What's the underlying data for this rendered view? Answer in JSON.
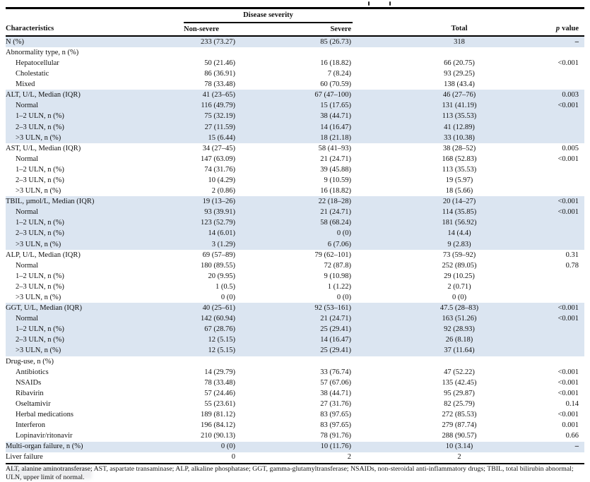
{
  "colors": {
    "row_shade": "#dbe5f1",
    "rule": "#000000",
    "text": "#121212"
  },
  "table": {
    "group_header": "Disease severity",
    "columns": {
      "characteristics": "Characteristics",
      "non_severe": "Non-severe",
      "severe": "Severe",
      "total": "Total",
      "p_italic": "p",
      "p_rest": "value"
    },
    "rows": [
      {
        "label": "N (%)",
        "indent": 0,
        "non_severe": "233 (73.27)",
        "severe": "85 (26.73)",
        "total": "318",
        "p": "–",
        "shaded": true
      },
      {
        "label": "Abnormality type, n (%)",
        "indent": 0,
        "non_severe": "",
        "severe": "",
        "total": "",
        "p": "",
        "shaded": false
      },
      {
        "label": "Hepatocellular",
        "indent": 1,
        "non_severe": "50 (21.46)",
        "severe": "16 (18.82)",
        "total": "66 (20.75)",
        "p": "<0.001",
        "shaded": false
      },
      {
        "label": "Cholestatic",
        "indent": 1,
        "non_severe": "86 (36.91)",
        "severe": "7 (8.24)",
        "total": "93 (29.25)",
        "p": "",
        "shaded": false
      },
      {
        "label": "Mixed",
        "indent": 1,
        "non_severe": "78 (33.48)",
        "severe": "60 (70.59)",
        "total": "138 (43.4)",
        "p": "",
        "shaded": false
      },
      {
        "label": "ALT, U/L, Median (IQR)",
        "indent": 0,
        "non_severe": "41 (23–65)",
        "severe": "67 (47–100)",
        "total": "46 (27–76)",
        "p": "0.003",
        "shaded": true
      },
      {
        "label": "Normal",
        "indent": 1,
        "non_severe": "116 (49.79)",
        "severe": "15 (17.65)",
        "total": "131 (41.19)",
        "p": "<0.001",
        "shaded": true
      },
      {
        "label": "1–2 ULN, n (%)",
        "indent": 1,
        "non_severe": "75 (32.19)",
        "severe": "38 (44.71)",
        "total": "113 (35.53)",
        "p": "",
        "shaded": true
      },
      {
        "label": "2–3 ULN, n (%)",
        "indent": 1,
        "non_severe": "27 (11.59)",
        "severe": "14 (16.47)",
        "total": "41 (12.89)",
        "p": "",
        "shaded": true
      },
      {
        "label": ">3 ULN, n (%)",
        "indent": 1,
        "non_severe": "15 (6.44)",
        "severe": "18 (21.18)",
        "total": "33 (10.38)",
        "p": "",
        "shaded": true
      },
      {
        "label": "AST, U/L, Median (IQR)",
        "indent": 0,
        "non_severe": "34 (27–45)",
        "severe": "58 (41–93)",
        "total": "38 (28–52)",
        "p": "0.005",
        "shaded": false
      },
      {
        "label": "Normal",
        "indent": 1,
        "non_severe": "147 (63.09)",
        "severe": "21 (24.71)",
        "total": "168 (52.83)",
        "p": "<0.001",
        "shaded": false
      },
      {
        "label": "1–2 ULN, n (%)",
        "indent": 1,
        "non_severe": "74 (31.76)",
        "severe": "39 (45.88)",
        "total": "113 (35.53)",
        "p": "",
        "shaded": false
      },
      {
        "label": "2–3 ULN, n (%)",
        "indent": 1,
        "non_severe": "10 (4.29)",
        "severe": "9 (10.59)",
        "total": "19 (5.97)",
        "p": "",
        "shaded": false
      },
      {
        "label": ">3 ULN, n (%)",
        "indent": 1,
        "non_severe": "2 (0.86)",
        "severe": "16 (18.82)",
        "total": "18 (5.66)",
        "p": "",
        "shaded": false
      },
      {
        "label": "TBIL, µmol/L, Median (IQR)",
        "indent": 0,
        "non_severe": "19 (13–26)",
        "severe": "22 (18–28)",
        "total": "20 (14–27)",
        "p": "<0.001",
        "shaded": true
      },
      {
        "label": "Normal",
        "indent": 1,
        "non_severe": "93 (39.91)",
        "severe": "21 (24.71)",
        "total": "114 (35.85)",
        "p": "<0.001",
        "shaded": true
      },
      {
        "label": "1–2 ULN, n (%)",
        "indent": 1,
        "non_severe": "123 (52.79)",
        "severe": "58 (68.24)",
        "total": "181 (56.92)",
        "p": "",
        "shaded": true
      },
      {
        "label": "2–3 ULN, n (%)",
        "indent": 1,
        "non_severe": "14 (6.01)",
        "severe": "0 (0)",
        "total": "14 (4.4)",
        "p": "",
        "shaded": true
      },
      {
        "label": ">3 ULN, n (%)",
        "indent": 1,
        "non_severe": "3 (1.29)",
        "severe": "6 (7.06)",
        "total": "9 (2.83)",
        "p": "",
        "shaded": true
      },
      {
        "label": "ALP, U/L, Median (IQR)",
        "indent": 0,
        "non_severe": "69 (57–89)",
        "severe": "79 (62–101)",
        "total": "73 (59–92)",
        "p": "0.31",
        "shaded": false
      },
      {
        "label": "Normal",
        "indent": 1,
        "non_severe": "180 (89.55)",
        "severe": "72 (87.8)",
        "total": "252 (89.05)",
        "p": "0.78",
        "shaded": false
      },
      {
        "label": "1–2 ULN, n (%)",
        "indent": 1,
        "non_severe": "20 (9.95)",
        "severe": "9 (10.98)",
        "total": "29 (10.25)",
        "p": "",
        "shaded": false
      },
      {
        "label": "2–3 ULN, n (%)",
        "indent": 1,
        "non_severe": "1 (0.5)",
        "severe": "1 (1.22)",
        "total": "2 (0.71)",
        "p": "",
        "shaded": false
      },
      {
        "label": ">3 ULN, n (%)",
        "indent": 1,
        "non_severe": "0 (0)",
        "severe": "0 (0)",
        "total": "0 (0)",
        "p": "",
        "shaded": false
      },
      {
        "label": "GGT, U/L, Median (IQR)",
        "indent": 0,
        "non_severe": "40 (25–61)",
        "severe": "92 (53–161)",
        "total": "47.5 (28–83)",
        "p": "<0.001",
        "shaded": true
      },
      {
        "label": "Normal",
        "indent": 1,
        "non_severe": "142 (60.94)",
        "severe": "21 (24.71)",
        "total": "163 (51.26)",
        "p": "<0.001",
        "shaded": true
      },
      {
        "label": "1–2 ULN, n (%)",
        "indent": 1,
        "non_severe": "67 (28.76)",
        "severe": "25 (29.41)",
        "total": "92 (28.93)",
        "p": "",
        "shaded": true
      },
      {
        "label": "2–3 ULN, n (%)",
        "indent": 1,
        "non_severe": "12 (5.15)",
        "severe": "14 (16.47)",
        "total": "26 (8.18)",
        "p": "",
        "shaded": true
      },
      {
        "label": ">3 ULN, n (%)",
        "indent": 1,
        "non_severe": "12 (5.15)",
        "severe": "25 (29.41)",
        "total": "37 (11.64)",
        "p": "",
        "shaded": true
      },
      {
        "label": "Drug-use, n (%)",
        "indent": 0,
        "non_severe": "",
        "severe": "",
        "total": "",
        "p": "",
        "shaded": false
      },
      {
        "label": "Antibiotics",
        "indent": 1,
        "non_severe": "14 (29.79)",
        "severe": "33 (76.74)",
        "total": "47 (52.22)",
        "p": "<0.001",
        "shaded": false
      },
      {
        "label": "NSAIDs",
        "indent": 1,
        "non_severe": "78 (33.48)",
        "severe": "57 (67.06)",
        "total": "135 (42.45)",
        "p": "<0.001",
        "shaded": false
      },
      {
        "label": "Ribavirin",
        "indent": 1,
        "non_severe": "57 (24.46)",
        "severe": "38 (44.71)",
        "total": "95 (29.87)",
        "p": "<0.001",
        "shaded": false
      },
      {
        "label": "Oseltamivir",
        "indent": 1,
        "non_severe": "55 (23.61)",
        "severe": "27 (31.76)",
        "total": "82 (25.79)",
        "p": "0.14",
        "shaded": false
      },
      {
        "label": "Herbal medications",
        "indent": 1,
        "non_severe": "189 (81.12)",
        "severe": "83 (97.65)",
        "total": "272 (85.53)",
        "p": "<0.001",
        "shaded": false
      },
      {
        "label": "Interferon",
        "indent": 1,
        "non_severe": "196 (84.12)",
        "severe": "83 (97.65)",
        "total": "279 (87.74)",
        "p": "0.001",
        "shaded": false
      },
      {
        "label": "Lopinavir/ritonavir",
        "indent": 1,
        "non_severe": "210 (90.13)",
        "severe": "78 (91.76)",
        "total": "288 (90.57)",
        "p": "0.66",
        "shaded": false
      },
      {
        "label": "Multi-organ failure, n (%)",
        "indent": 0,
        "non_severe": "0 (0)",
        "severe": "10 (11.76)",
        "total": "10 (3.14)",
        "p": "–",
        "shaded": true
      },
      {
        "label": "Liver failure",
        "indent": 0,
        "non_severe": "0",
        "severe": "2",
        "total": "2",
        "p": "",
        "shaded": false
      }
    ]
  },
  "footnote": "ALT, alanine aminotransferase; AST, aspartate transaminase; ALP, alkaline phosphatase; GGT, gamma-glutamyltransferase; NSAIDs, non-steroidal anti-inflammatory drugs; TBIL, total bilirubin abnormal; ULN, upper limit of normal."
}
